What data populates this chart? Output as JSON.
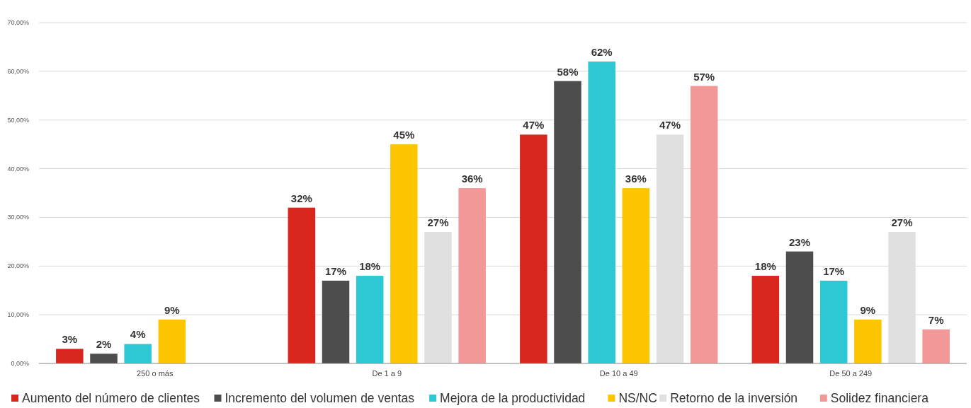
{
  "chart_data": {
    "type": "bar",
    "categories": [
      "250 o más",
      "De 1 a 9",
      "De 10 a 49",
      "De 50 a 249"
    ],
    "series": [
      {
        "name": "Aumento del número de clientes",
        "color": "#d9261c",
        "values": [
          3,
          32,
          47,
          18
        ],
        "value_labels": [
          "3%",
          "32%",
          "47%",
          "18%"
        ]
      },
      {
        "name": "Incremento del volumen de ventas",
        "color": "#4d4d4d",
        "values": [
          2,
          17,
          58,
          23
        ],
        "value_labels": [
          "2%",
          "17%",
          "58%",
          "23%"
        ]
      },
      {
        "name": "Mejora de la productividad",
        "color": "#2ec8d4",
        "values": [
          4,
          18,
          62,
          17
        ],
        "value_labels": [
          "4%",
          "18%",
          "62%",
          "17%"
        ]
      },
      {
        "name": "NS/NC",
        "color": "#fdc400",
        "values": [
          9,
          45,
          36,
          9
        ],
        "value_labels": [
          "9%",
          "45%",
          "36%",
          "9%"
        ]
      },
      {
        "name": "Retorno de la inversión",
        "color": "#e0e0e0",
        "values": [
          null,
          27,
          47,
          27
        ],
        "value_labels": [
          null,
          "27%",
          "47%",
          "27%"
        ]
      },
      {
        "name": "Solidez financiera",
        "color": "#f29898",
        "values": [
          null,
          36,
          57,
          7
        ],
        "value_labels": [
          null,
          "36%",
          "57%",
          "7%"
        ]
      }
    ],
    "ylim": [
      0,
      70
    ],
    "yticks": [
      {
        "value": 0,
        "label": "0,00%"
      },
      {
        "value": 10,
        "label": "10,00%"
      },
      {
        "value": 20,
        "label": "20,00%"
      },
      {
        "value": 30,
        "label": "30,00%"
      },
      {
        "value": 40,
        "label": "40,00%"
      },
      {
        "value": 50,
        "label": "50,00%"
      },
      {
        "value": 60,
        "label": "60,00%"
      },
      {
        "value": 70,
        "label": "70,00%"
      }
    ],
    "grid": "y",
    "legend": "bottom"
  }
}
